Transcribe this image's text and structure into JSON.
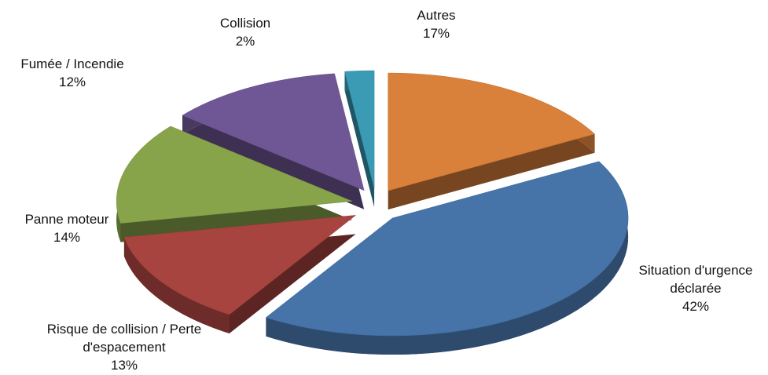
{
  "chart_data": {
    "type": "pie3d",
    "categories": [
      "Autres",
      "Situation d'urgence déclarée",
      "Risque de collision / Perte d'espacement",
      "Panne moteur",
      "Fumée / Incendie",
      "Collision"
    ],
    "values": [
      17,
      42,
      13,
      14,
      12,
      2
    ],
    "value_labels": [
      "17%",
      "42%",
      "13%",
      "14%",
      "12%",
      "2%"
    ],
    "colors": [
      "#d9803b",
      "#4673a8",
      "#a8443f",
      "#87a44b",
      "#6f5795",
      "#3b9ab4"
    ]
  }
}
